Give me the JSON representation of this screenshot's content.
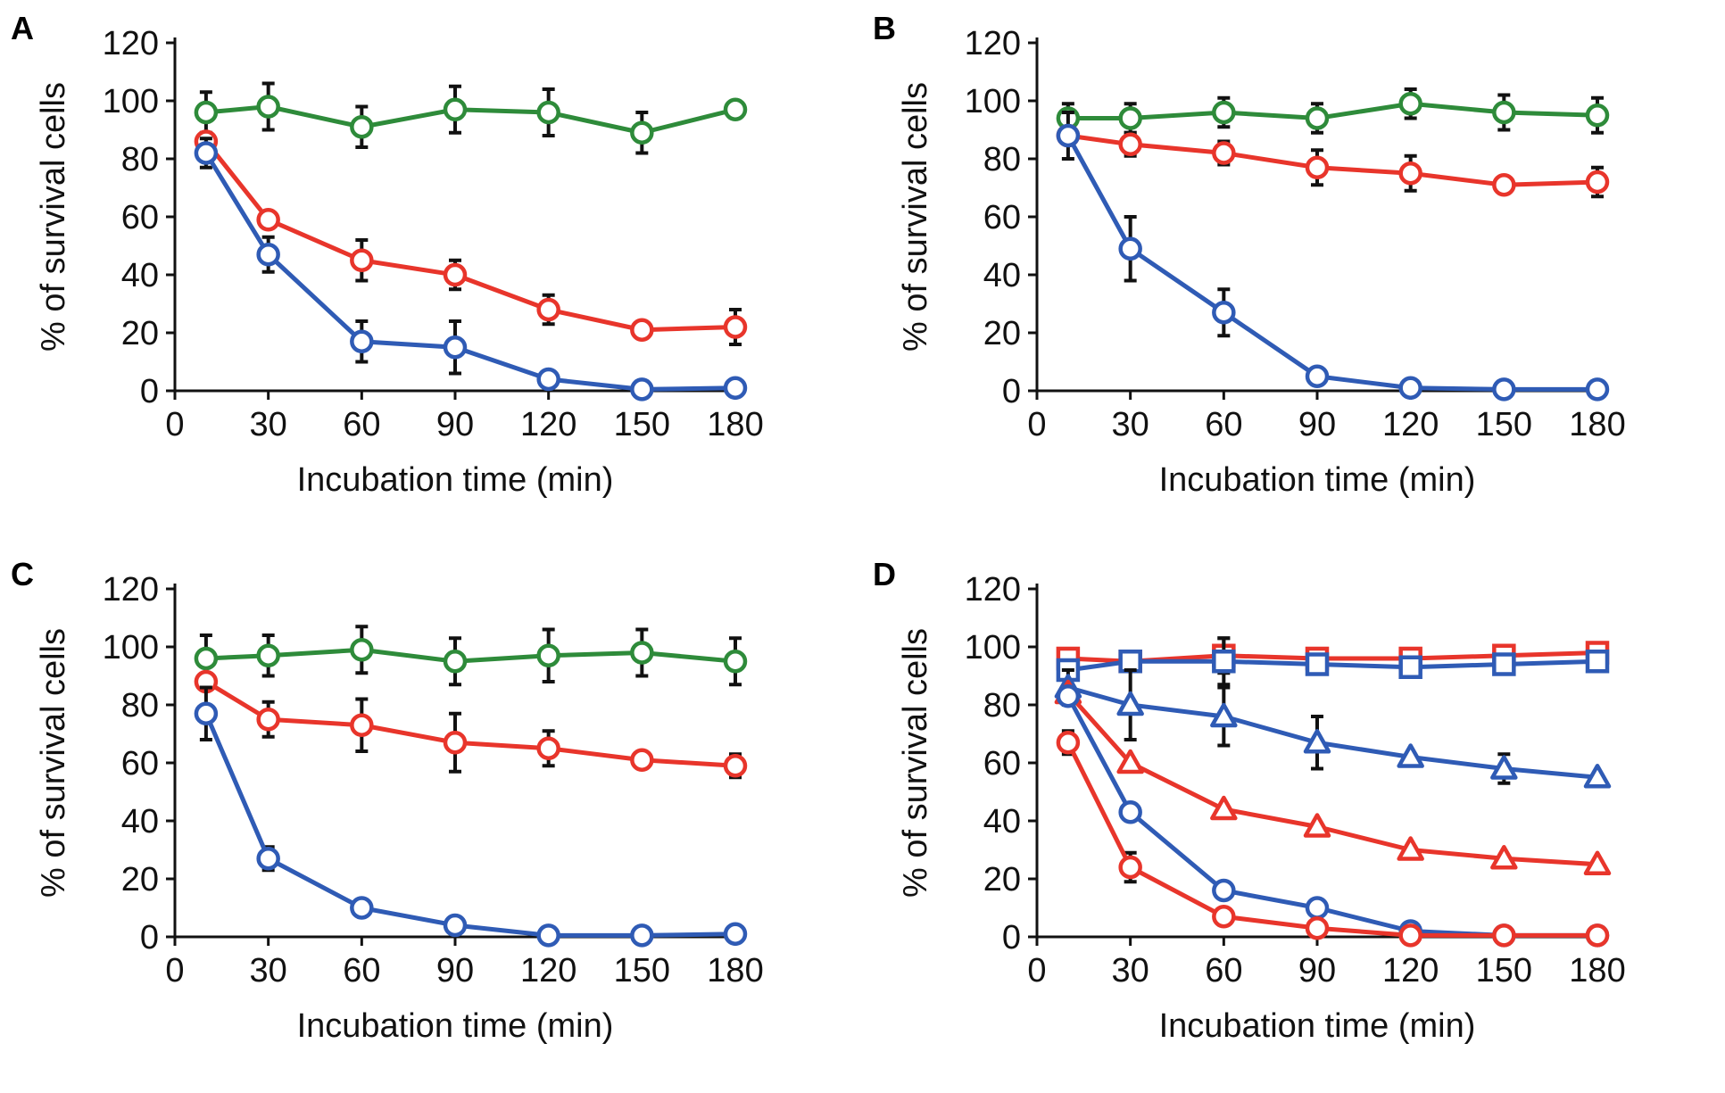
{
  "chart_data": [
    {
      "panel": "A",
      "type": "line",
      "xlabel": "Incubation time (min)",
      "ylabel": "% of survival cells",
      "x": [
        10,
        30,
        60,
        90,
        120,
        150,
        180
      ],
      "xticks": [
        0,
        30,
        60,
        90,
        120,
        150,
        180
      ],
      "yticks": [
        0,
        20,
        40,
        60,
        80,
        100,
        120
      ],
      "xlim": [
        0,
        180
      ],
      "ylim": [
        0,
        120
      ],
      "series": [
        {
          "name": "green circles",
          "color": "#2e8b3a",
          "marker": "circle",
          "values": [
            96,
            98,
            91,
            97,
            96,
            89,
            97
          ],
          "errors": [
            7,
            8,
            7,
            8,
            8,
            7,
            0
          ]
        },
        {
          "name": "red circles",
          "color": "#e8352b",
          "marker": "circle",
          "values": [
            86,
            59,
            45,
            40,
            28,
            21,
            22
          ],
          "errors": [
            0,
            0,
            7,
            5,
            5,
            0,
            6
          ]
        },
        {
          "name": "blue circles",
          "color": "#2f5bb5",
          "marker": "circle",
          "values": [
            82,
            47,
            17,
            15,
            4,
            0.5,
            1
          ],
          "errors": [
            5,
            6,
            7,
            9,
            0,
            0,
            0
          ]
        }
      ]
    },
    {
      "panel": "B",
      "type": "line",
      "xlabel": "Incubation time (min)",
      "ylabel": "% of survival cells",
      "x": [
        10,
        30,
        60,
        90,
        120,
        150,
        180
      ],
      "xticks": [
        0,
        30,
        60,
        90,
        120,
        150,
        180
      ],
      "yticks": [
        0,
        20,
        40,
        60,
        80,
        100,
        120
      ],
      "xlim": [
        0,
        180
      ],
      "ylim": [
        0,
        120
      ],
      "series": [
        {
          "name": "green circles",
          "color": "#2e8b3a",
          "marker": "circle",
          "values": [
            94,
            94,
            96,
            94,
            99,
            96,
            95
          ],
          "errors": [
            5,
            5,
            5,
            5,
            5,
            6,
            6
          ]
        },
        {
          "name": "red circles",
          "color": "#e8352b",
          "marker": "circle",
          "values": [
            88,
            85,
            82,
            77,
            75,
            71,
            72
          ],
          "errors": [
            0,
            4,
            4,
            6,
            6,
            0,
            5
          ]
        },
        {
          "name": "blue circles",
          "color": "#2f5bb5",
          "marker": "circle",
          "values": [
            88,
            49,
            27,
            5,
            1,
            0.5,
            0.5
          ],
          "errors": [
            8,
            11,
            8,
            0,
            0,
            0,
            0
          ]
        }
      ]
    },
    {
      "panel": "C",
      "type": "line",
      "xlabel": "Incubation time (min)",
      "ylabel": "% of survival cells",
      "x": [
        10,
        30,
        60,
        90,
        120,
        150,
        180
      ],
      "xticks": [
        0,
        30,
        60,
        90,
        120,
        150,
        180
      ],
      "yticks": [
        0,
        20,
        40,
        60,
        80,
        100,
        120
      ],
      "xlim": [
        0,
        180
      ],
      "ylim": [
        0,
        120
      ],
      "series": [
        {
          "name": "green circles",
          "color": "#2e8b3a",
          "marker": "circle",
          "values": [
            96,
            97,
            99,
            95,
            97,
            98,
            95
          ],
          "errors": [
            8,
            7,
            8,
            8,
            9,
            8,
            8
          ]
        },
        {
          "name": "red circles",
          "color": "#e8352b",
          "marker": "circle",
          "values": [
            88,
            75,
            73,
            67,
            65,
            61,
            59
          ],
          "errors": [
            0,
            6,
            9,
            10,
            6,
            0,
            4
          ]
        },
        {
          "name": "blue circles",
          "color": "#2f5bb5",
          "marker": "circle",
          "values": [
            77,
            27,
            10,
            4,
            0.5,
            0.5,
            1
          ],
          "errors": [
            9,
            4,
            0,
            0,
            0,
            0,
            0
          ]
        }
      ]
    },
    {
      "panel": "D",
      "type": "line",
      "xlabel": "Incubation time (min)",
      "ylabel": "% of survival cells",
      "x": [
        10,
        30,
        60,
        90,
        120,
        150,
        180
      ],
      "xticks": [
        0,
        30,
        60,
        90,
        120,
        150,
        180
      ],
      "yticks": [
        0,
        20,
        40,
        60,
        80,
        100,
        120
      ],
      "xlim": [
        0,
        180
      ],
      "ylim": [
        0,
        120
      ],
      "series": [
        {
          "name": "red squares",
          "color": "#e8352b",
          "marker": "square",
          "values": [
            96,
            95,
            97,
            96,
            96,
            97,
            98
          ],
          "errors": [
            0,
            0,
            6,
            0,
            0,
            0,
            0
          ]
        },
        {
          "name": "blue squares",
          "color": "#2f5bb5",
          "marker": "square",
          "values": [
            92,
            95,
            95,
            94,
            93,
            94,
            95
          ],
          "errors": [
            0,
            0,
            8,
            0,
            0,
            0,
            0
          ]
        },
        {
          "name": "blue triangles",
          "color": "#2f5bb5",
          "marker": "triangle",
          "values": [
            86,
            80,
            76,
            67,
            62,
            58,
            55
          ],
          "errors": [
            6,
            12,
            10,
            9,
            0,
            5,
            0
          ]
        },
        {
          "name": "red triangles",
          "color": "#e8352b",
          "marker": "triangle",
          "values": [
            84,
            60,
            44,
            38,
            30,
            27,
            25
          ],
          "errors": [
            0,
            0,
            0,
            0,
            0,
            0,
            0
          ]
        },
        {
          "name": "blue circles",
          "color": "#2f5bb5",
          "marker": "circle",
          "values": [
            83,
            43,
            16,
            10,
            2,
            0.5,
            0.5
          ],
          "errors": [
            0,
            0,
            0,
            0,
            0,
            0,
            0
          ]
        },
        {
          "name": "red circles",
          "color": "#e8352b",
          "marker": "circle",
          "values": [
            67,
            24,
            7,
            3,
            0.5,
            0.5,
            0.5
          ],
          "errors": [
            4,
            5,
            0,
            0,
            0,
            0,
            0
          ]
        }
      ]
    }
  ]
}
